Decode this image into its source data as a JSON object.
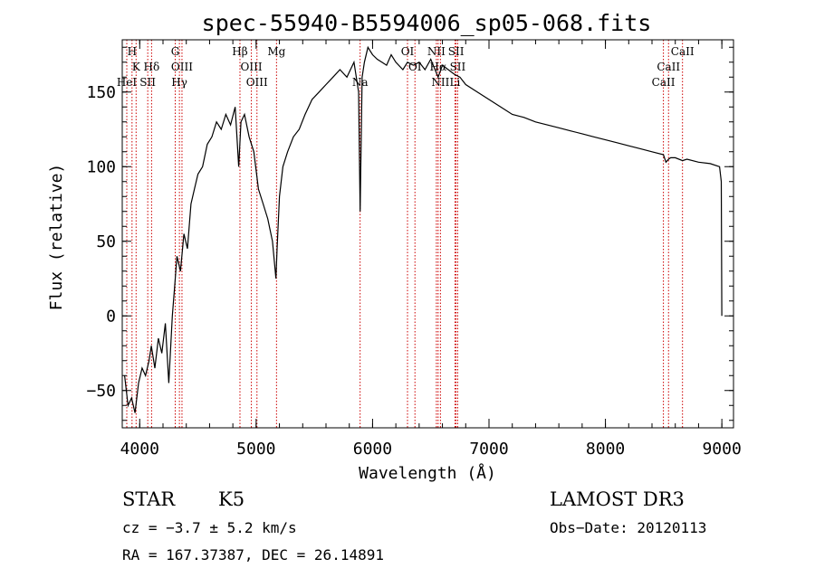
{
  "chart_data": {
    "type": "line",
    "title": "spec-55940-B5594006_sp05-068.fits",
    "xlabel": "Wavelength (Å)",
    "ylabel": "Flux (relative)",
    "xlim": [
      3850,
      9100
    ],
    "ylim": [
      -75,
      185
    ],
    "xticks": [
      4000,
      5000,
      6000,
      7000,
      8000,
      9000
    ],
    "yticks": [
      -50,
      0,
      50,
      100,
      150
    ],
    "series": [
      {
        "name": "flux",
        "x": [
          3870,
          3900,
          3930,
          3960,
          3990,
          4020,
          4050,
          4080,
          4100,
          4130,
          4160,
          4190,
          4220,
          4250,
          4280,
          4300,
          4320,
          4350,
          4380,
          4410,
          4440,
          4470,
          4500,
          4540,
          4580,
          4620,
          4660,
          4700,
          4740,
          4780,
          4820,
          4850,
          4870,
          4900,
          4940,
          4980,
          5020,
          5060,
          5100,
          5140,
          5170,
          5180,
          5200,
          5230,
          5270,
          5320,
          5370,
          5420,
          5480,
          5540,
          5600,
          5660,
          5720,
          5780,
          5840,
          5880,
          5893,
          5910,
          5930,
          5960,
          6000,
          6040,
          6080,
          6120,
          6160,
          6200,
          6260,
          6300,
          6350,
          6400,
          6450,
          6500,
          6563,
          6600,
          6650,
          6700,
          6750,
          6800,
          6900,
          7000,
          7100,
          7200,
          7300,
          7400,
          7500,
          7600,
          7700,
          7800,
          7900,
          8000,
          8100,
          8200,
          8300,
          8400,
          8498,
          8520,
          8542,
          8560,
          8600,
          8662,
          8700,
          8800,
          8900,
          8980,
          8995,
          9000
        ],
        "y": [
          -40,
          -60,
          -55,
          -65,
          -45,
          -35,
          -40,
          -30,
          -20,
          -35,
          -15,
          -25,
          -5,
          -45,
          0,
          20,
          40,
          30,
          55,
          45,
          75,
          85,
          95,
          100,
          115,
          120,
          130,
          125,
          135,
          128,
          140,
          100,
          130,
          135,
          120,
          110,
          85,
          75,
          65,
          50,
          25,
          45,
          80,
          100,
          110,
          120,
          125,
          135,
          145,
          150,
          155,
          160,
          165,
          160,
          170,
          150,
          70,
          160,
          170,
          180,
          175,
          172,
          170,
          168,
          175,
          170,
          165,
          170,
          168,
          170,
          165,
          172,
          160,
          168,
          165,
          162,
          160,
          155,
          150,
          145,
          140,
          135,
          133,
          130,
          128,
          126,
          124,
          122,
          120,
          118,
          116,
          114,
          112,
          110,
          108,
          103,
          105,
          106,
          106,
          104,
          105,
          103,
          102,
          100,
          90,
          0
        ]
      }
    ],
    "spectral_lines": [
      {
        "label": "H",
        "wavelength": 3934,
        "row": 0
      },
      {
        "label": "K",
        "wavelength": 3969,
        "row": 1
      },
      {
        "label": "HeI",
        "wavelength": 3889,
        "row": 2
      },
      {
        "label": "SII",
        "wavelength": 4069,
        "row": 2
      },
      {
        "label": "Hδ",
        "wavelength": 4102,
        "row": 1
      },
      {
        "label": "G",
        "wavelength": 4305,
        "row": 0
      },
      {
        "label": "OIII",
        "wavelength": 4363,
        "row": 1
      },
      {
        "label": "Hγ",
        "wavelength": 4341,
        "row": 2
      },
      {
        "label": "Hβ",
        "wavelength": 4861,
        "row": 0
      },
      {
        "label": "OIII",
        "wavelength": 4959,
        "row": 1
      },
      {
        "label": "OIII",
        "wavelength": 5007,
        "row": 2
      },
      {
        "label": "Mg",
        "wavelength": 5175,
        "row": 0
      },
      {
        "label": "Na",
        "wavelength": 5893,
        "row": 2
      },
      {
        "label": "OI",
        "wavelength": 6300,
        "row": 0
      },
      {
        "label": "OI",
        "wavelength": 6364,
        "row": 1
      },
      {
        "label": "NII",
        "wavelength": 6548,
        "row": 0
      },
      {
        "label": "Hα",
        "wavelength": 6563,
        "row": 1
      },
      {
        "label": "NII",
        "wavelength": 6583,
        "row": 2
      },
      {
        "label": "SII",
        "wavelength": 6717,
        "row": 0
      },
      {
        "label": "SII",
        "wavelength": 6731,
        "row": 1
      },
      {
        "label": "Li",
        "wavelength": 6708,
        "row": 2
      },
      {
        "label": "CaII",
        "wavelength": 8662,
        "row": 0
      },
      {
        "label": "CaII",
        "wavelength": 8542,
        "row": 1
      },
      {
        "label": "CaII",
        "wavelength": 8498,
        "row": 2
      }
    ]
  },
  "info": {
    "class_label": "STAR",
    "subclass": "K5",
    "survey": "LAMOST DR3",
    "cz": "cz = −3.7 ± 5.2 km/s",
    "obs_date": "Obs−Date: 20120113",
    "coords": "RA = 167.37387, DEC =  26.14891"
  },
  "colors": {
    "spectrum": "#000000",
    "marker_line": "#cc0000",
    "axis": "#000000"
  }
}
